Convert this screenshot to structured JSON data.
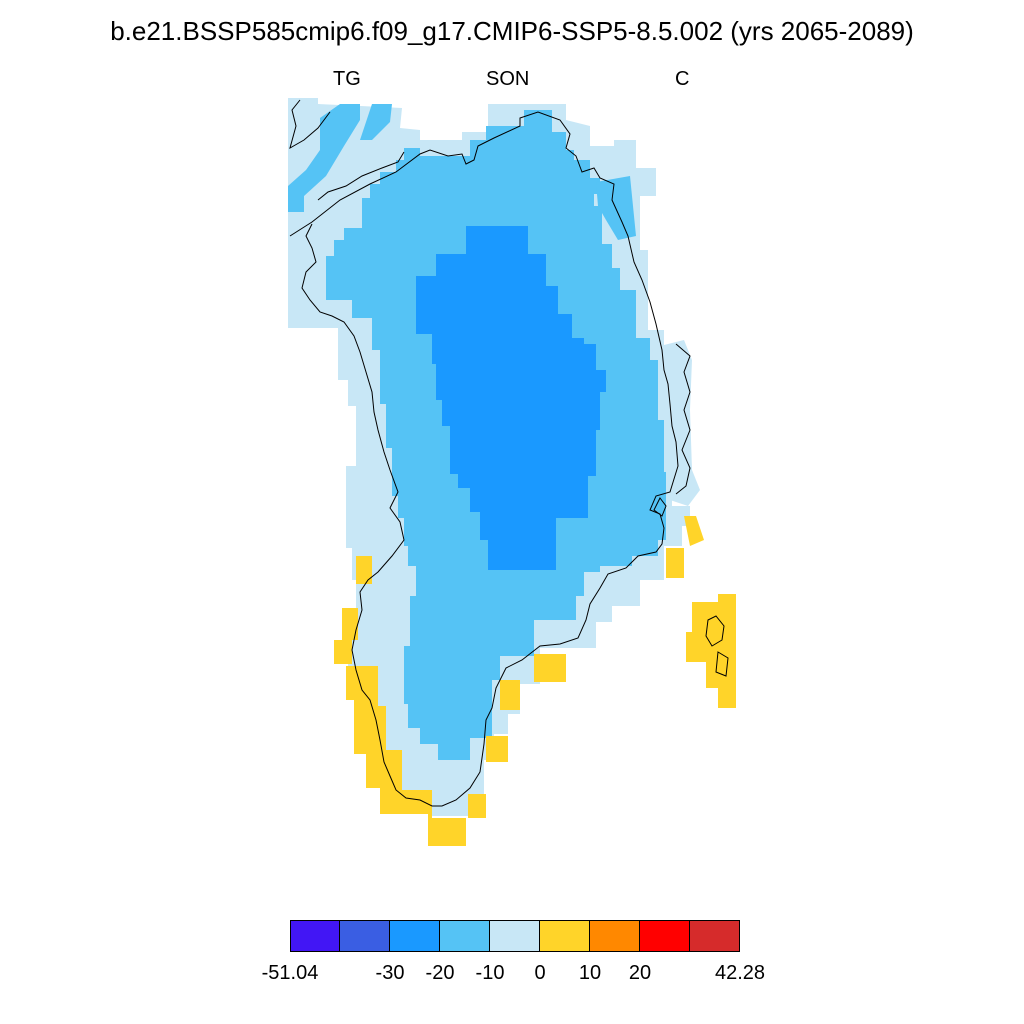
{
  "title": "b.e21.BSSP585cmip6.f09_g17.CMIP6-SSP5-8.5.002 (yrs 2065-2089)",
  "subtitle_left": "TG",
  "subtitle_center": "SON",
  "subtitle_right": "C",
  "colorbar": {
    "colors": [
      "#4216f5",
      "#3a5ee3",
      "#1a99ff",
      "#55c3f5",
      "#c8e7f6",
      "#ffd429",
      "#ff8800",
      "#ff0000",
      "#d62b2b"
    ],
    "labels": [
      "-51.04",
      "-30",
      "-20",
      "-10",
      "0",
      "10",
      "20",
      "42.28"
    ]
  },
  "map": {
    "region": "Greenland",
    "ocean_color": "#ffffff",
    "coastline_color": "#000000",
    "categories_present": [
      {
        "range": "-30 to -20",
        "color": "#1a99ff"
      },
      {
        "range": "-20 to -10",
        "color": "#55c3f5"
      },
      {
        "range": "-10 to 0",
        "color": "#c8e7f6"
      },
      {
        "range": "0 to 10",
        "color": "#ffd429"
      }
    ]
  }
}
